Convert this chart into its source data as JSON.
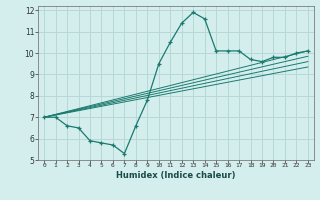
{
  "xlabel": "Humidex (Indice chaleur)",
  "ylabel": "",
  "bg_color": "#d4eeee",
  "line_color": "#1a7a6e",
  "grid_color": "#b8d8d8",
  "xlim": [
    -0.5,
    23.5
  ],
  "ylim": [
    5,
    12.2
  ],
  "xticks": [
    0,
    1,
    2,
    3,
    4,
    5,
    6,
    7,
    8,
    9,
    10,
    11,
    12,
    13,
    14,
    15,
    16,
    17,
    18,
    19,
    20,
    21,
    22,
    23
  ],
  "yticks": [
    5,
    6,
    7,
    8,
    9,
    10,
    11,
    12
  ],
  "main_line": {
    "x": [
      0,
      1,
      2,
      3,
      4,
      5,
      6,
      7,
      8,
      9,
      10,
      11,
      12,
      13,
      14,
      15,
      16,
      17,
      18,
      19,
      20,
      21,
      22,
      23
    ],
    "y": [
      7.0,
      7.0,
      6.6,
      6.5,
      5.9,
      5.8,
      5.7,
      5.3,
      6.6,
      7.8,
      9.5,
      10.5,
      11.4,
      11.9,
      11.6,
      10.1,
      10.1,
      10.1,
      9.7,
      9.6,
      9.8,
      9.8,
      10.0,
      10.1
    ]
  },
  "linear_lines": [
    {
      "x": [
        0,
        23
      ],
      "y": [
        7.0,
        10.1
      ]
    },
    {
      "x": [
        0,
        23
      ],
      "y": [
        7.0,
        9.85
      ]
    },
    {
      "x": [
        0,
        23
      ],
      "y": [
        7.0,
        9.6
      ]
    },
    {
      "x": [
        0,
        23
      ],
      "y": [
        7.0,
        9.35
      ]
    }
  ]
}
